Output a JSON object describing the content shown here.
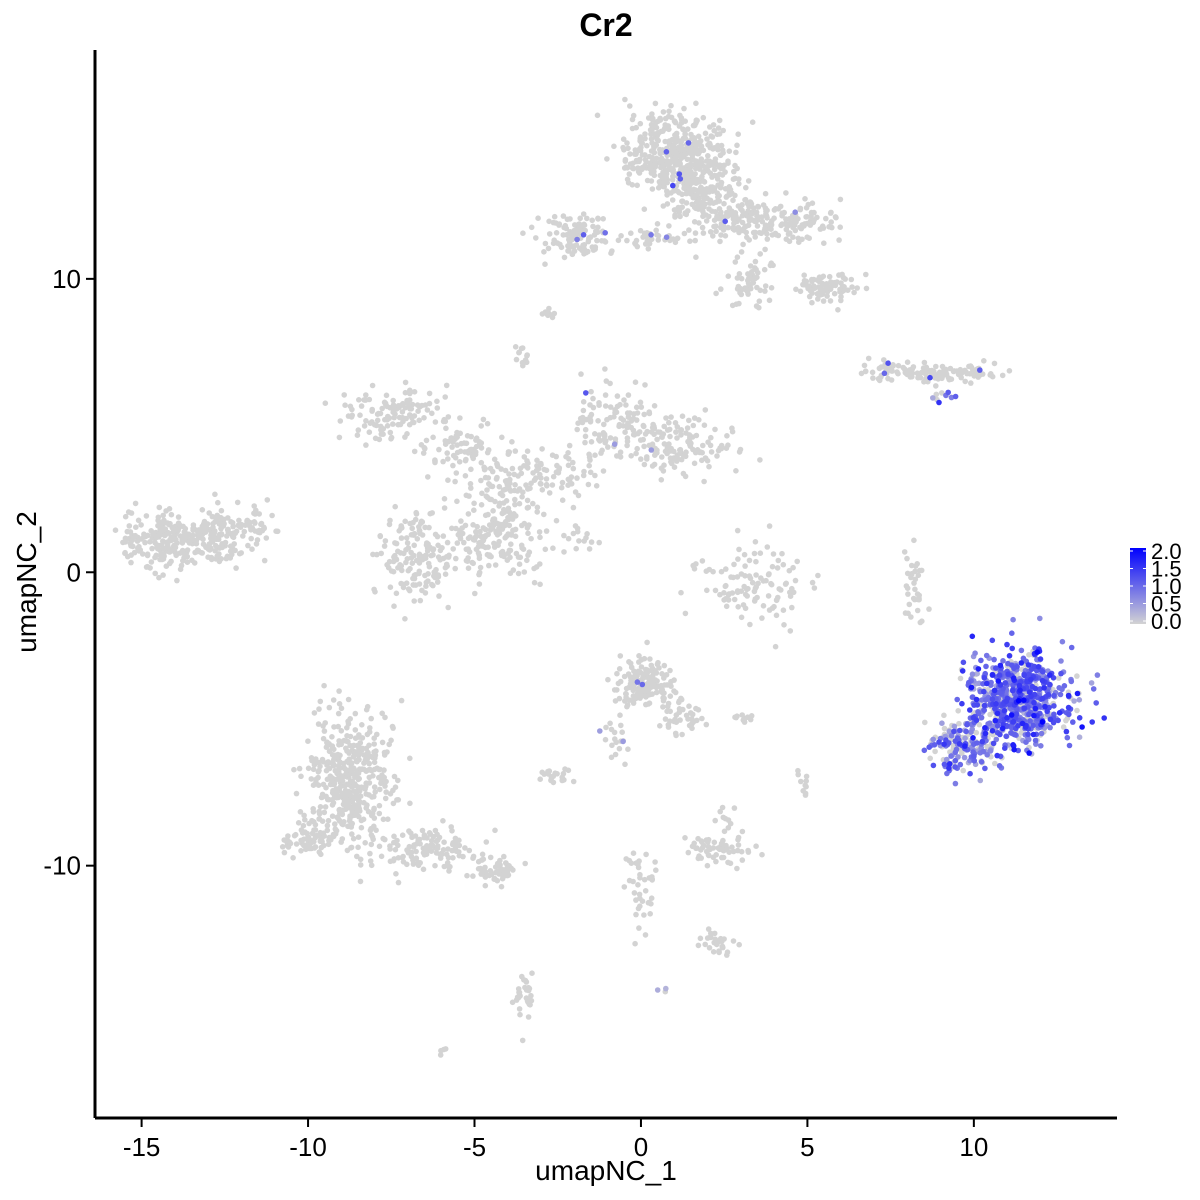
{
  "chart_data": {
    "type": "scatter",
    "title": "Cr2",
    "xlabel": "umapNC_1",
    "ylabel": "umapNC_2",
    "xlim": [
      -16.4,
      14.3
    ],
    "ylim": [
      -18.6,
      17.8
    ],
    "x_ticks": [
      -15,
      -10,
      -5,
      0,
      5,
      10
    ],
    "x_tick_labels": [
      "-15",
      "-10",
      "-5",
      "0",
      "5",
      "10"
    ],
    "y_ticks": [
      -10,
      0,
      10
    ],
    "y_tick_labels": [
      "-10",
      "0",
      "10"
    ],
    "grid": false,
    "legend": {
      "placement": "right",
      "type": "colorbar",
      "ticks": [
        0.0,
        0.5,
        1.0,
        1.5,
        2.0
      ],
      "tick_labels": [
        "0.0",
        "0.5",
        "1.0",
        "1.5",
        "2.0"
      ],
      "low_color": "#d3d3d3",
      "high_color": "#0000ff"
    },
    "color_scale": {
      "min": 0.0,
      "max": 2.0,
      "low": "#d3d3d3",
      "high": "#0000ff"
    },
    "point_color_default": "#d3d3d3",
    "clusters": [
      {
        "center": [
          -13.7,
          1.1
        ],
        "spread": [
          1.3,
          0.6
        ],
        "n": 300,
        "expr_frac": 0.0,
        "expr_mean": 0.0
      },
      {
        "center": [
          -12.0,
          1.6
        ],
        "spread": [
          0.7,
          0.4
        ],
        "n": 60,
        "expr_frac": 0.0,
        "expr_mean": 0.0
      },
      {
        "center": [
          -6.7,
          0.6
        ],
        "spread": [
          0.9,
          1.0
        ],
        "n": 160,
        "expr_frac": 0.0,
        "expr_mean": 0.0
      },
      {
        "center": [
          -4.3,
          1.2
        ],
        "spread": [
          0.9,
          1.1
        ],
        "n": 180,
        "expr_frac": 0.0,
        "expr_mean": 0.0
      },
      {
        "center": [
          -7.5,
          5.4
        ],
        "spread": [
          1.0,
          0.6
        ],
        "n": 120,
        "expr_frac": 0.0,
        "expr_mean": 0.0
      },
      {
        "center": [
          -5.3,
          4.2
        ],
        "spread": [
          0.8,
          0.6
        ],
        "n": 70,
        "expr_frac": 0.0,
        "expr_mean": 0.0
      },
      {
        "center": [
          -4.0,
          3.3
        ],
        "spread": [
          0.8,
          0.8
        ],
        "n": 70,
        "expr_frac": 0.0,
        "expr_mean": 0.0
      },
      {
        "center": [
          -2.6,
          3.3
        ],
        "spread": [
          1.0,
          0.6
        ],
        "n": 60,
        "expr_frac": 0.0,
        "expr_mean": 0.0
      },
      {
        "center": [
          -0.8,
          5.0
        ],
        "spread": [
          0.8,
          0.9
        ],
        "n": 110,
        "expr_frac": 0.02,
        "expr_mean": 0.8
      },
      {
        "center": [
          1.3,
          4.3
        ],
        "spread": [
          1.1,
          0.6
        ],
        "n": 130,
        "expr_frac": 0.0,
        "expr_mean": 0.0
      },
      {
        "center": [
          -3.6,
          7.4
        ],
        "spread": [
          0.2,
          0.3
        ],
        "n": 12,
        "expr_frac": 0.0,
        "expr_mean": 0.0
      },
      {
        "center": [
          -2.8,
          8.8
        ],
        "spread": [
          0.2,
          0.1
        ],
        "n": 10,
        "expr_frac": 0.0,
        "expr_mean": 0.0
      },
      {
        "center": [
          -1.8,
          1.1
        ],
        "spread": [
          0.4,
          0.3
        ],
        "n": 15,
        "expr_frac": 0.2,
        "expr_mean": 0.8
      },
      {
        "center": [
          1.0,
          14.2
        ],
        "spread": [
          1.0,
          1.0
        ],
        "n": 420,
        "expr_frac": 0.01,
        "expr_mean": 0.8
      },
      {
        "center": [
          1.8,
          13.0
        ],
        "spread": [
          0.8,
          0.8
        ],
        "n": 150,
        "expr_frac": 0.0,
        "expr_mean": 0.0
      },
      {
        "center": [
          3.2,
          12.0
        ],
        "spread": [
          0.9,
          0.5
        ],
        "n": 140,
        "expr_frac": 0.01,
        "expr_mean": 0.8
      },
      {
        "center": [
          4.9,
          11.9
        ],
        "spread": [
          0.8,
          0.4
        ],
        "n": 70,
        "expr_frac": 0.0,
        "expr_mean": 0.0
      },
      {
        "center": [
          5.5,
          9.7
        ],
        "spread": [
          0.7,
          0.3
        ],
        "n": 80,
        "expr_frac": 0.0,
        "expr_mean": 0.0
      },
      {
        "center": [
          3.2,
          9.9
        ],
        "spread": [
          0.5,
          0.7
        ],
        "n": 60,
        "expr_frac": 0.0,
        "expr_mean": 0.0
      },
      {
        "center": [
          -2.0,
          11.5
        ],
        "spread": [
          0.8,
          0.5
        ],
        "n": 110,
        "expr_frac": 0.04,
        "expr_mean": 0.9
      },
      {
        "center": [
          0.5,
          11.4
        ],
        "spread": [
          0.9,
          0.3
        ],
        "n": 40,
        "expr_frac": 0.03,
        "expr_mean": 0.8
      },
      {
        "center": [
          9.0,
          6.8
        ],
        "spread": [
          1.0,
          0.2
        ],
        "n": 110,
        "expr_frac": 0.03,
        "expr_mean": 0.8
      },
      {
        "center": [
          9.0,
          6.0
        ],
        "spread": [
          0.3,
          0.2
        ],
        "n": 10,
        "expr_frac": 0.7,
        "expr_mean": 1.0
      },
      {
        "center": [
          7.3,
          6.9
        ],
        "spread": [
          0.5,
          0.2
        ],
        "n": 25,
        "expr_frac": 0.05,
        "expr_mean": 0.8
      },
      {
        "center": [
          3.3,
          -0.5
        ],
        "spread": [
          1.1,
          0.9
        ],
        "n": 110,
        "expr_frac": 0.0,
        "expr_mean": 0.0
      },
      {
        "center": [
          8.2,
          -0.5
        ],
        "spread": [
          0.2,
          0.9
        ],
        "n": 35,
        "expr_frac": 0.0,
        "expr_mean": 0.0
      },
      {
        "center": [
          11.3,
          -4.3
        ],
        "spread": [
          1.0,
          1.0
        ],
        "n": 720,
        "expr_frac": 0.78,
        "expr_mean": 1.0
      },
      {
        "center": [
          9.8,
          -5.9
        ],
        "spread": [
          0.8,
          0.6
        ],
        "n": 180,
        "expr_frac": 0.55,
        "expr_mean": 0.9
      },
      {
        "center": [
          0.2,
          -3.8
        ],
        "spread": [
          0.6,
          0.6
        ],
        "n": 160,
        "expr_frac": 0.03,
        "expr_mean": 0.8
      },
      {
        "center": [
          1.2,
          -5.0
        ],
        "spread": [
          0.5,
          0.5
        ],
        "n": 40,
        "expr_frac": 0.0,
        "expr_mean": 0.0
      },
      {
        "center": [
          -0.8,
          -5.8
        ],
        "spread": [
          0.4,
          0.6
        ],
        "n": 20,
        "expr_frac": 0.1,
        "expr_mean": 0.8
      },
      {
        "center": [
          -2.6,
          -6.9
        ],
        "spread": [
          0.3,
          0.2
        ],
        "n": 20,
        "expr_frac": 0.05,
        "expr_mean": 0.8
      },
      {
        "center": [
          -8.7,
          -7.0
        ],
        "spread": [
          0.8,
          1.4
        ],
        "n": 420,
        "expr_frac": 0.0,
        "expr_mean": 0.0
      },
      {
        "center": [
          -9.8,
          -9.0
        ],
        "spread": [
          0.6,
          0.4
        ],
        "n": 80,
        "expr_frac": 0.0,
        "expr_mean": 0.0
      },
      {
        "center": [
          -6.4,
          -9.4
        ],
        "spread": [
          1.1,
          0.5
        ],
        "n": 120,
        "expr_frac": 0.0,
        "expr_mean": 0.0
      },
      {
        "center": [
          -4.4,
          -10.2
        ],
        "spread": [
          0.6,
          0.3
        ],
        "n": 50,
        "expr_frac": 0.0,
        "expr_mean": 0.0
      },
      {
        "center": [
          2.4,
          -9.5
        ],
        "spread": [
          0.7,
          0.3
        ],
        "n": 60,
        "expr_frac": 0.0,
        "expr_mean": 0.0
      },
      {
        "center": [
          2.6,
          -8.5
        ],
        "spread": [
          0.2,
          0.3
        ],
        "n": 10,
        "expr_frac": 0.0,
        "expr_mean": 0.0
      },
      {
        "center": [
          5.0,
          -7.3
        ],
        "spread": [
          0.2,
          0.3
        ],
        "n": 10,
        "expr_frac": 0.0,
        "expr_mean": 0.0
      },
      {
        "center": [
          3.1,
          -5.0
        ],
        "spread": [
          0.3,
          0.1
        ],
        "n": 10,
        "expr_frac": 0.0,
        "expr_mean": 0.0
      },
      {
        "center": [
          0.0,
          -10.9
        ],
        "spread": [
          0.3,
          0.9
        ],
        "n": 40,
        "expr_frac": 0.0,
        "expr_mean": 0.0
      },
      {
        "center": [
          2.2,
          -12.6
        ],
        "spread": [
          0.4,
          0.2
        ],
        "n": 30,
        "expr_frac": 0.0,
        "expr_mean": 0.0
      },
      {
        "center": [
          -3.5,
          -14.5
        ],
        "spread": [
          0.2,
          0.6
        ],
        "n": 30,
        "expr_frac": 0.0,
        "expr_mean": 0.0
      },
      {
        "center": [
          0.7,
          -14.2
        ],
        "spread": [
          0.1,
          0.1
        ],
        "n": 3,
        "expr_frac": 0.5,
        "expr_mean": 0.8
      },
      {
        "center": [
          -6.0,
          -16.3
        ],
        "spread": [
          0.1,
          0.1
        ],
        "n": 4,
        "expr_frac": 0.0,
        "expr_mean": 0.0
      }
    ],
    "seed": 20240601
  }
}
